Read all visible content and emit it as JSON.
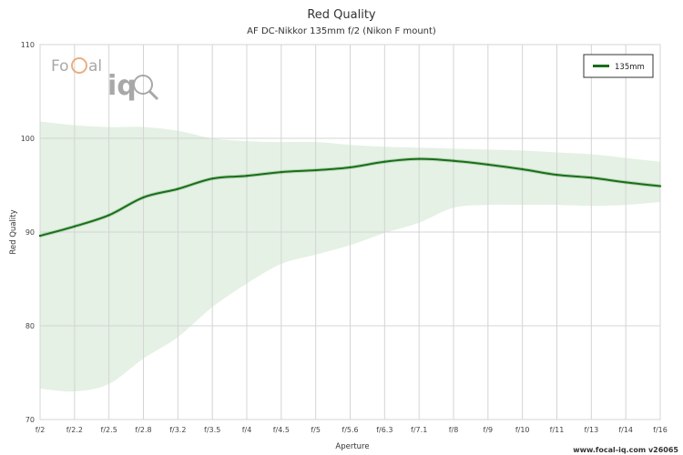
{
  "chart_data": {
    "type": "line",
    "title": "Red Quality",
    "subtitle": "AF DC-Nikkor 135mm f/2 (Nikon F mount)",
    "xlabel": "Aperture",
    "ylabel": "Red Quality",
    "categories": [
      "f/2",
      "f/2.2",
      "f/2.5",
      "f/2.8",
      "f/3.2",
      "f/3.5",
      "f/4",
      "f/4.5",
      "f/5",
      "f/5.6",
      "f/6.3",
      "f/7.1",
      "f/8",
      "f/9",
      "f/10",
      "f/11",
      "f/13",
      "f/14",
      "f/16"
    ],
    "ylim": [
      70,
      110
    ],
    "yticks": [
      70,
      80,
      90,
      100,
      110
    ],
    "grid": true,
    "legend_position": "top-right",
    "series": [
      {
        "name": "135mm",
        "color": "#1a6e1a",
        "values": [
          89.6,
          90.6,
          91.8,
          93.7,
          94.6,
          95.7,
          96.0,
          96.4,
          96.6,
          96.9,
          97.5,
          97.8,
          97.6,
          97.2,
          96.7,
          96.1,
          95.8,
          95.3,
          94.9
        ],
        "band_upper": [
          101.8,
          101.4,
          101.2,
          101.2,
          100.8,
          100.0,
          99.7,
          99.6,
          99.6,
          99.3,
          99.1,
          99.0,
          98.9,
          98.8,
          98.7,
          98.5,
          98.3,
          97.9,
          97.5
        ],
        "band_lower": [
          73.3,
          73.0,
          73.8,
          76.5,
          78.8,
          82.0,
          84.5,
          86.6,
          87.6,
          88.6,
          89.9,
          91.0,
          92.6,
          92.9,
          92.9,
          92.9,
          92.8,
          92.9,
          93.2
        ],
        "band_color": "#dbecdb"
      }
    ]
  },
  "watermark": {
    "brand_left": "Fo",
    "brand_mid": "al",
    "brand_iq": "iq"
  },
  "footer": {
    "text": "www.focal-iq.com  v26065"
  }
}
